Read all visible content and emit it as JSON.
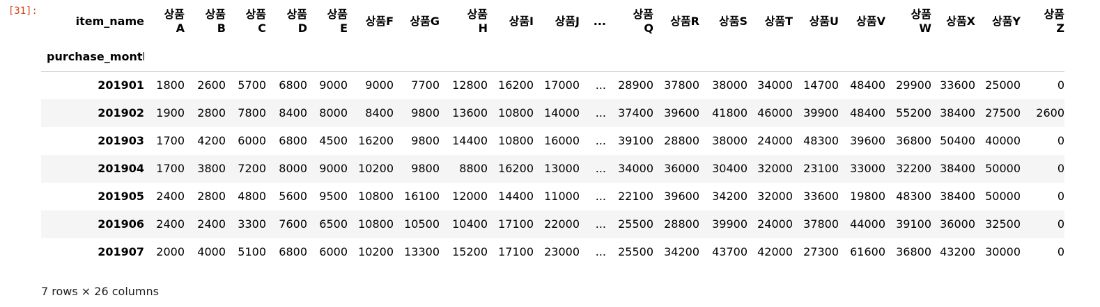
{
  "cell": {
    "prompt": "[31]:"
  },
  "table": {
    "columns_name": "item_name",
    "index_name": "purchase_month",
    "columns": [
      "상품\nA",
      "상품\nB",
      "상품\nC",
      "상품\nD",
      "상품\nE",
      "상품F",
      "상품G",
      "상품\nH",
      "상품I",
      "상품J",
      "...",
      "상품\nQ",
      "상품R",
      "상품S",
      "상품T",
      "상품U",
      "상품V",
      "상품\nW",
      "상품X",
      "상품Y",
      "상품\nZ"
    ],
    "rows": [
      {
        "index": "201901",
        "values": [
          "1800",
          "2600",
          "5700",
          "6800",
          "9000",
          "9000",
          "7700",
          "12800",
          "16200",
          "17000",
          "...",
          "28900",
          "37800",
          "38000",
          "34000",
          "14700",
          "48400",
          "29900",
          "33600",
          "25000",
          "0"
        ]
      },
      {
        "index": "201902",
        "values": [
          "1900",
          "2800",
          "7800",
          "8400",
          "8000",
          "8400",
          "9800",
          "13600",
          "10800",
          "14000",
          "...",
          "37400",
          "39600",
          "41800",
          "46000",
          "39900",
          "48400",
          "55200",
          "38400",
          "27500",
          "2600"
        ]
      },
      {
        "index": "201903",
        "values": [
          "1700",
          "4200",
          "6000",
          "6800",
          "4500",
          "16200",
          "9800",
          "14400",
          "10800",
          "16000",
          "...",
          "39100",
          "28800",
          "38000",
          "24000",
          "48300",
          "39600",
          "36800",
          "50400",
          "40000",
          "0"
        ]
      },
      {
        "index": "201904",
        "values": [
          "1700",
          "3800",
          "7200",
          "8000",
          "9000",
          "10200",
          "9800",
          "8800",
          "16200",
          "13000",
          "...",
          "34000",
          "36000",
          "30400",
          "32000",
          "23100",
          "33000",
          "32200",
          "38400",
          "50000",
          "0"
        ]
      },
      {
        "index": "201905",
        "values": [
          "2400",
          "2800",
          "4800",
          "5600",
          "9500",
          "10800",
          "16100",
          "12000",
          "14400",
          "11000",
          "...",
          "22100",
          "39600",
          "34200",
          "32000",
          "33600",
          "19800",
          "48300",
          "38400",
          "50000",
          "0"
        ]
      },
      {
        "index": "201906",
        "values": [
          "2400",
          "2400",
          "3300",
          "7600",
          "6500",
          "10800",
          "10500",
          "10400",
          "17100",
          "22000",
          "...",
          "25500",
          "28800",
          "39900",
          "24000",
          "37800",
          "44000",
          "39100",
          "36000",
          "32500",
          "0"
        ]
      },
      {
        "index": "201907",
        "values": [
          "2000",
          "4000",
          "5100",
          "6800",
          "6000",
          "10200",
          "13300",
          "15200",
          "17100",
          "23000",
          "...",
          "25500",
          "34200",
          "43700",
          "42000",
          "27300",
          "61600",
          "36800",
          "43200",
          "30000",
          "0"
        ]
      }
    ],
    "shape_text": "7 rows × 26 columns"
  },
  "colors": {
    "prompt": "#d84315",
    "row_stripe": "#f5f5f5",
    "header_border": "#bdbdbd"
  }
}
